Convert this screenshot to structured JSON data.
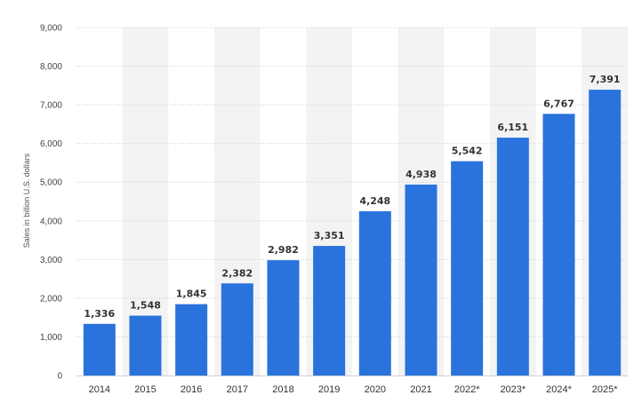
{
  "chart_data": {
    "type": "bar",
    "title": "",
    "xlabel": "",
    "ylabel": "Sales in billion U.S. dollars",
    "categories": [
      "2014",
      "2015",
      "2016",
      "2017",
      "2018",
      "2019",
      "2020",
      "2021",
      "2022*",
      "2023*",
      "2024*",
      "2025*"
    ],
    "values": [
      1336,
      1548,
      1845,
      2382,
      2982,
      3351,
      4248,
      4938,
      5542,
      6151,
      6767,
      7391
    ],
    "value_labels": [
      "1,336",
      "1,548",
      "1,845",
      "2,382",
      "2,982",
      "3,351",
      "4,248",
      "4,938",
      "5,542",
      "6,151",
      "6,767",
      "7,391"
    ],
    "ylim": [
      0,
      9000
    ],
    "yticks": [
      0,
      1000,
      2000,
      3000,
      4000,
      5000,
      6000,
      7000,
      8000,
      9000
    ],
    "ytick_labels": [
      "0",
      "1,000",
      "2,000",
      "3,000",
      "4,000",
      "5,000",
      "6,000",
      "7,000",
      "8,000",
      "9,000"
    ],
    "grid": true,
    "legend": "none",
    "bar_color": "#2a73dd",
    "band_color": "#f3f3f3",
    "grid_color": "#cccccc"
  }
}
